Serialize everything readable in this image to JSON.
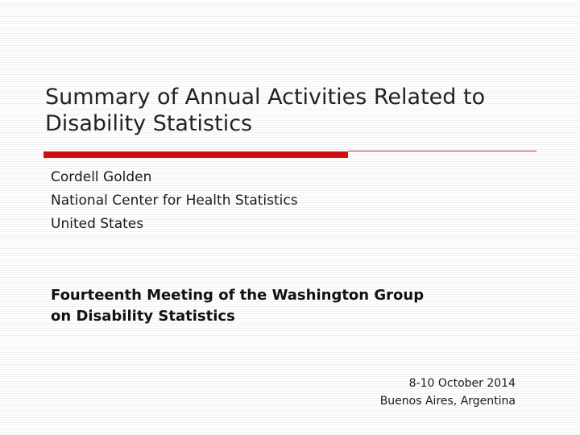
{
  "slide": {
    "title_line1": "Summary of Annual Activities Related to",
    "title_line2": "Disability Statistics",
    "presenter": {
      "name": "Cordell Golden",
      "organization": "National Center for Health Statistics",
      "country": "United States"
    },
    "meeting": {
      "line1": "Fourteenth Meeting of the Washington Group",
      "line2": "on Disability Statistics"
    },
    "event": {
      "dates": "8-10 October 2014",
      "location": "Buenos Aires, Argentina"
    }
  },
  "colors": {
    "accent_rule": "#d01010",
    "background": "#ffffff",
    "stripe": "#f0f0f0"
  }
}
